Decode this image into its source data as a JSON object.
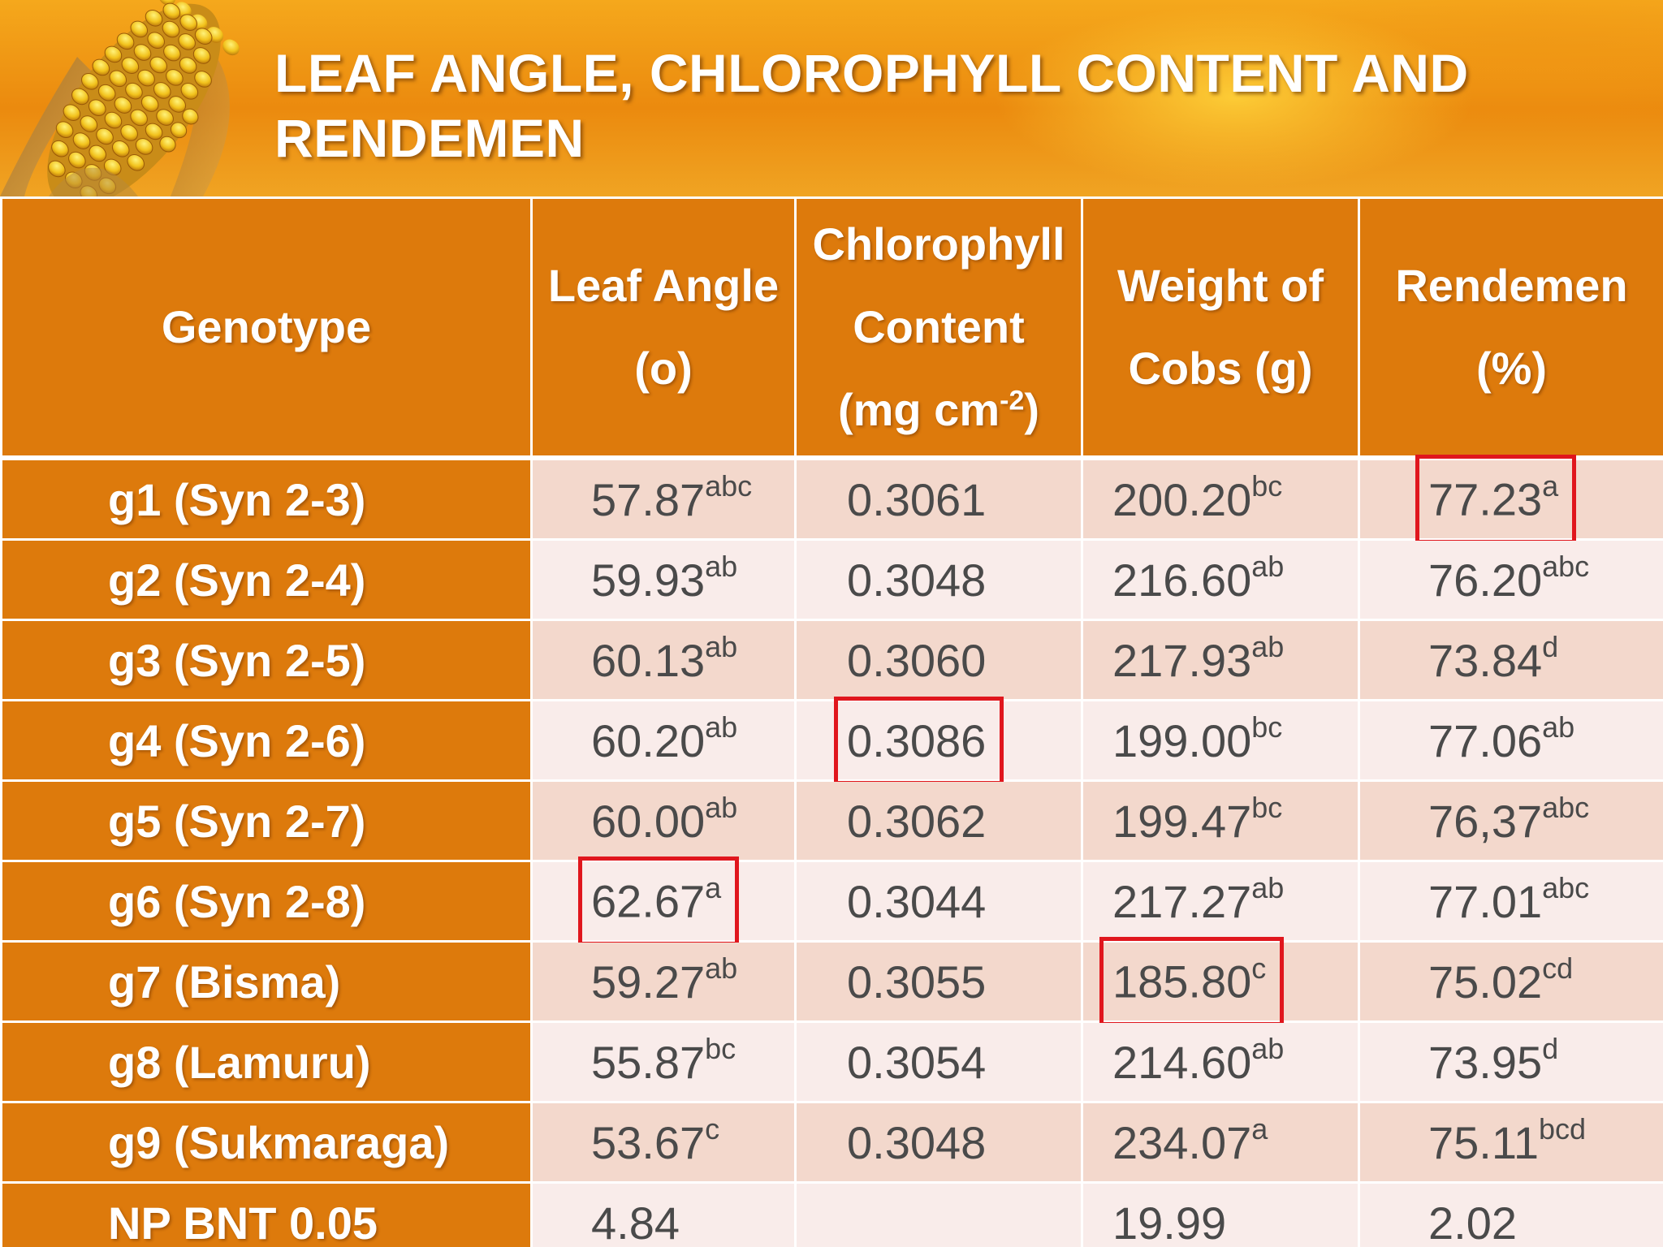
{
  "title": "LEAF ANGLE, CHLOROPHYLL CONTENT AND RENDEMEN",
  "headers": {
    "genotype": "Genotype",
    "leaf_angle_1": "Leaf Angle",
    "leaf_angle_2": "(o)",
    "chl_1": "Chlorophyll",
    "chl_2": "Content",
    "chl_3": "(mg cm",
    "chl_sup": "-2",
    "chl_4": ")",
    "cobs_1": "Weight of",
    "cobs_2": "Cobs (g)",
    "rend_1": "Rendemen",
    "rend_2": "(%)"
  },
  "rows": [
    {
      "genotype": "g1 (Syn 2-3)",
      "leaf_angle": "57.87",
      "leaf_angle_sup": "abc",
      "chlorophyll": "0.3061",
      "cobs": "200.20",
      "cobs_sup": "bc",
      "rendemen": "77.23",
      "rendemen_sup": "a"
    },
    {
      "genotype": "g2 (Syn 2-4)",
      "leaf_angle": "59.93",
      "leaf_angle_sup": "ab",
      "chlorophyll": "0.3048",
      "cobs": "216.60",
      "cobs_sup": "ab",
      "rendemen": "76.20",
      "rendemen_sup": "abc"
    },
    {
      "genotype": "g3 (Syn 2-5)",
      "leaf_angle": "60.13",
      "leaf_angle_sup": "ab",
      "chlorophyll": "0.3060",
      "cobs": "217.93",
      "cobs_sup": "ab",
      "rendemen": "73.84",
      "rendemen_sup": "d"
    },
    {
      "genotype": "g4 (Syn 2-6)",
      "leaf_angle": "60.20",
      "leaf_angle_sup": "ab",
      "chlorophyll": "0.3086",
      "cobs": "199.00",
      "cobs_sup": "bc",
      "rendemen": "77.06",
      "rendemen_sup": "ab"
    },
    {
      "genotype": "g5 (Syn 2-7)",
      "leaf_angle": "60.00",
      "leaf_angle_sup": "ab",
      "chlorophyll": "0.3062",
      "cobs": "199.47",
      "cobs_sup": "bc",
      "rendemen": "76,37",
      "rendemen_sup": "abc"
    },
    {
      "genotype": "g6 (Syn 2-8)",
      "leaf_angle": "62.67",
      "leaf_angle_sup": "a",
      "chlorophyll": "0.3044",
      "cobs": "217.27",
      "cobs_sup": "ab",
      "rendemen": "77.01",
      "rendemen_sup": "abc"
    },
    {
      "genotype": "g7 (Bisma)",
      "leaf_angle": "59.27",
      "leaf_angle_sup": "ab",
      "chlorophyll": "0.3055",
      "cobs": "185.80",
      "cobs_sup": "c",
      "rendemen": "75.02",
      "rendemen_sup": "cd"
    },
    {
      "genotype": "g8 (Lamuru)",
      "leaf_angle": "55.87",
      "leaf_angle_sup": "bc",
      "chlorophyll": "0.3054",
      "cobs": "214.60",
      "cobs_sup": "ab",
      "rendemen": "73.95",
      "rendemen_sup": "d"
    },
    {
      "genotype": "g9 (Sukmaraga)",
      "leaf_angle": "53.67",
      "leaf_angle_sup": "c",
      "chlorophyll": "0.3048",
      "cobs": "234.07",
      "cobs_sup": "a",
      "rendemen": "75.11",
      "rendemen_sup": "bcd"
    },
    {
      "genotype": "NP BNT 0.05",
      "leaf_angle": "4.84",
      "leaf_angle_sup": "",
      "chlorophyll": "",
      "cobs": "19.99",
      "cobs_sup": "",
      "rendemen": "2.02",
      "rendemen_sup": ""
    }
  ],
  "colors": {
    "header_orange": "#dd7a0c",
    "row_odd": "#f3d8cc",
    "row_even": "#f9ecea",
    "highlight_box": "#e0161d"
  },
  "icons": [
    "corn-cob-icon"
  ]
}
